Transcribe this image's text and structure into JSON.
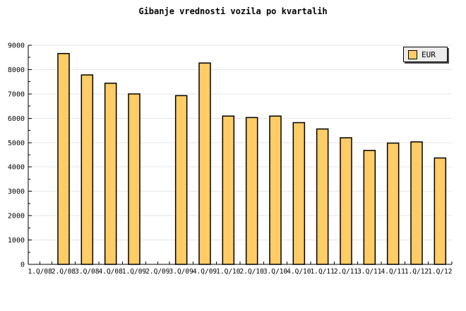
{
  "title": "Gibanje vrednosti vozila po kvartalih",
  "legend": {
    "label": "EUR",
    "swatch_color": "#FFCC66"
  },
  "colors": {
    "background": "#FFFFFF",
    "bar_fill": "#FFCC66",
    "bar_border": "#000000",
    "gridline": "#E6E6E6",
    "axis": "#000000",
    "text": "#000000",
    "legend_bg": "#ECECEC",
    "legend_shadow": "#4D4D4D"
  },
  "chart_data": {
    "type": "bar",
    "title": "Gibanje vrednosti vozila po kvartalih",
    "categories": [
      "1.Q/08",
      "2.Q/08",
      "3.Q/08",
      "4.Q/08",
      "1.Q/09",
      "2.Q/09",
      "3.Q/09",
      "4.Q/09",
      "1.Q/10",
      "2.Q/10",
      "3.Q/10",
      "4.Q/10",
      "1.Q/11",
      "2.Q/11",
      "3.Q/11",
      "4.Q/11",
      "1.Q/12",
      "1.Q/12"
    ],
    "series": [
      {
        "name": "EUR",
        "values": [
          null,
          8660,
          7780,
          7440,
          7000,
          null,
          6930,
          8270,
          6090,
          6030,
          6090,
          5820,
          5560,
          5200,
          4680,
          4980,
          5030,
          4370
        ]
      }
    ],
    "xlabel": "",
    "ylabel": "",
    "ylim": [
      0,
      9000
    ],
    "yticks": [
      0,
      1000,
      2000,
      3000,
      4000,
      5000,
      6000,
      7000,
      8000,
      9000
    ],
    "y_minor_step": 500,
    "grid": "horizontal-major",
    "legend_position": "top-right",
    "legend_entries": [
      "EUR"
    ]
  }
}
